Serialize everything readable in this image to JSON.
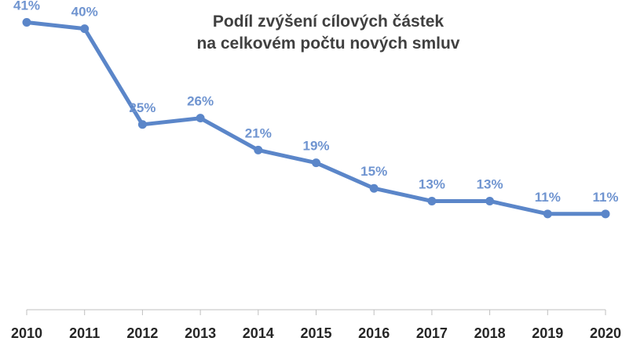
{
  "chart_data": {
    "type": "line",
    "title_lines": [
      "Podíl zvýšení cílových částek",
      "na celkovém počtu nových smluv"
    ],
    "xlabel": "",
    "ylabel": "",
    "categories": [
      "2010",
      "2011",
      "2012",
      "2013",
      "2014",
      "2015",
      "2016",
      "2017",
      "2018",
      "2019",
      "2020"
    ],
    "series": [
      {
        "values": [
          41,
          40,
          25,
          26,
          21,
          19,
          15,
          13,
          13,
          11,
          11
        ],
        "labels": [
          "41%",
          "40%",
          "25%",
          "26%",
          "21%",
          "19%",
          "15%",
          "13%",
          "13%",
          "11%",
          "11%"
        ],
        "color": "#5b86c9",
        "label_color": "#6f94d0"
      }
    ],
    "ylim": [
      -4,
      48
    ],
    "grid": false,
    "legend": "none"
  }
}
